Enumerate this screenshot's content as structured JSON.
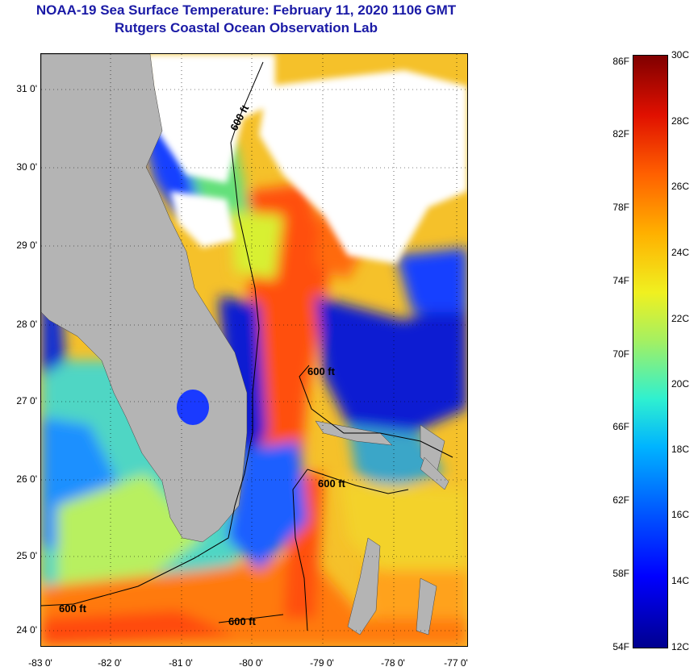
{
  "title": "NOAA-19 Sea Surface Temperature:  February 11, 2020 1106 GMT",
  "subtitle": "Rutgers Coastal Ocean Observation Lab",
  "lat_labels": [
    "31 0'",
    "30 0'",
    "29 0'",
    "28 0'",
    "27 0'",
    "26 0'",
    "25 0'",
    "24 0'"
  ],
  "lon_labels": [
    "-83 0'",
    "-82 0'",
    "-81 0'",
    "-80 0'",
    "-79 0'",
    "-78 0'",
    "-77 0'"
  ],
  "contour_labels": [
    "600 ft",
    "600 ft",
    "600 ft",
    "600 ft",
    "600 ft"
  ],
  "colorbar": {
    "fahrenheit": [
      "86F",
      "82F",
      "78F",
      "74F",
      "70F",
      "66F",
      "62F",
      "58F",
      "54F"
    ],
    "celsius": [
      "30C",
      "28C",
      "26C",
      "24C",
      "22C",
      "20C",
      "18C",
      "16C",
      "14C",
      "12C"
    ]
  },
  "colors": {
    "title": "#1a1aa6",
    "land": "#b4b4b4",
    "cloud": "#ffffff",
    "warm": "#ff5a00",
    "cold": "#0a1ed2"
  }
}
